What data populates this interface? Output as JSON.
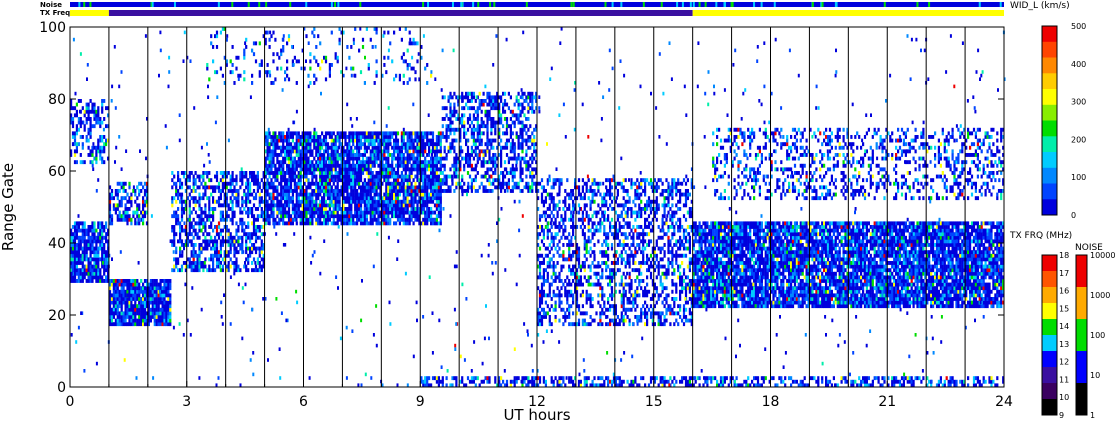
{
  "chart_data": {
    "type": "heatmap",
    "xlabel": "UT hours",
    "ylabel": "Range Gate",
    "xlim": [
      0,
      24
    ],
    "ylim": [
      0,
      100
    ],
    "x_ticks": [
      "0",
      "3",
      "6",
      "9",
      "12",
      "15",
      "18",
      "21",
      "24"
    ],
    "y_ticks": [
      "0",
      "20",
      "40",
      "60",
      "80",
      "100"
    ],
    "scan_boundaries_hours": [
      1,
      2,
      3,
      4,
      5,
      6,
      7,
      8,
      9,
      10,
      11,
      12,
      13,
      14,
      15,
      16,
      17,
      18,
      19,
      20,
      21,
      22,
      23
    ],
    "status_bars": {
      "noise_label": "Noise",
      "txfreq_label": "TX Freq",
      "txfreq_segments": [
        {
          "from": 0,
          "to": 1,
          "color": "#ffff00"
        },
        {
          "from": 1,
          "to": 16,
          "color": "#3a0fa0"
        },
        {
          "from": 16,
          "to": 24,
          "color": "#ffff00"
        }
      ]
    },
    "echo_regions": [
      {
        "name": "early-band-upper",
        "t0": 0.0,
        "t1": 1.0,
        "g0": 62,
        "g1": 80,
        "density": 0.45
      },
      {
        "name": "early-band-lower",
        "t0": 0.0,
        "t1": 1.0,
        "g0": 29,
        "g1": 46,
        "density": 0.85
      },
      {
        "name": "dip-lower",
        "t0": 1.0,
        "t1": 2.6,
        "g0": 17,
        "g1": 30,
        "density": 0.9
      },
      {
        "name": "dip-mid",
        "t0": 1.0,
        "t1": 2.0,
        "g0": 45,
        "g1": 57,
        "density": 0.55
      },
      {
        "name": "rise",
        "t0": 2.6,
        "t1": 5.0,
        "g0": 32,
        "g1": 60,
        "density": 0.55
      },
      {
        "name": "main-band",
        "t0": 5.0,
        "t1": 9.6,
        "g0": 45,
        "g1": 71,
        "density": 0.85
      },
      {
        "name": "arc-peak",
        "t0": 9.6,
        "t1": 12.0,
        "g0": 54,
        "g1": 82,
        "density": 0.5
      },
      {
        "name": "descent",
        "t0": 12.0,
        "t1": 16.0,
        "g0": 17,
        "g1": 58,
        "density": 0.45
      },
      {
        "name": "afternoon-band",
        "t0": 16.0,
        "t1": 24.0,
        "g0": 22,
        "g1": 46,
        "density": 0.88
      },
      {
        "name": "afternoon-upper",
        "t0": 16.5,
        "t1": 24.0,
        "g0": 52,
        "g1": 72,
        "density": 0.3
      },
      {
        "name": "high-scatter",
        "t0": 3.5,
        "t1": 9.3,
        "g0": 84,
        "g1": 100,
        "density": 0.12
      },
      {
        "name": "ground-scatter-row",
        "t0": 9.0,
        "t1": 24.0,
        "g0": 0,
        "g1": 3,
        "density": 0.5
      }
    ]
  },
  "colorbars": {
    "width": {
      "title": "WID_L (km/s)",
      "ticks": [
        "0",
        "100",
        "200",
        "300",
        "400",
        "500"
      ]
    },
    "txfreq": {
      "title": "TX FRQ (MHz)",
      "ticks": [
        "9",
        "10",
        "11",
        "12",
        "13",
        "14",
        "15",
        "16",
        "17",
        "18"
      ]
    },
    "noise": {
      "title": "NOISE",
      "ticks": [
        "1",
        "10",
        "100",
        "1000",
        "10000"
      ]
    }
  },
  "palette": {
    "velocity_scale": [
      "#0000dd",
      "#0044ff",
      "#0088ff",
      "#00ccff",
      "#00eeaa",
      "#00dd00",
      "#88ee00",
      "#ffff00",
      "#ffcc00",
      "#ff8800",
      "#ff4400",
      "#ee0000"
    ],
    "txfreq_scale": [
      "#000000",
      "#3a0060",
      "#3a0fa0",
      "#0000ff",
      "#00ccff",
      "#00dd00",
      "#ffff00",
      "#ffaa00",
      "#ff5500",
      "#ee0000"
    ],
    "noise_scale": [
      "#000000",
      "#0000ff",
      "#00dd00",
      "#ffaa00",
      "#ee0000"
    ]
  }
}
